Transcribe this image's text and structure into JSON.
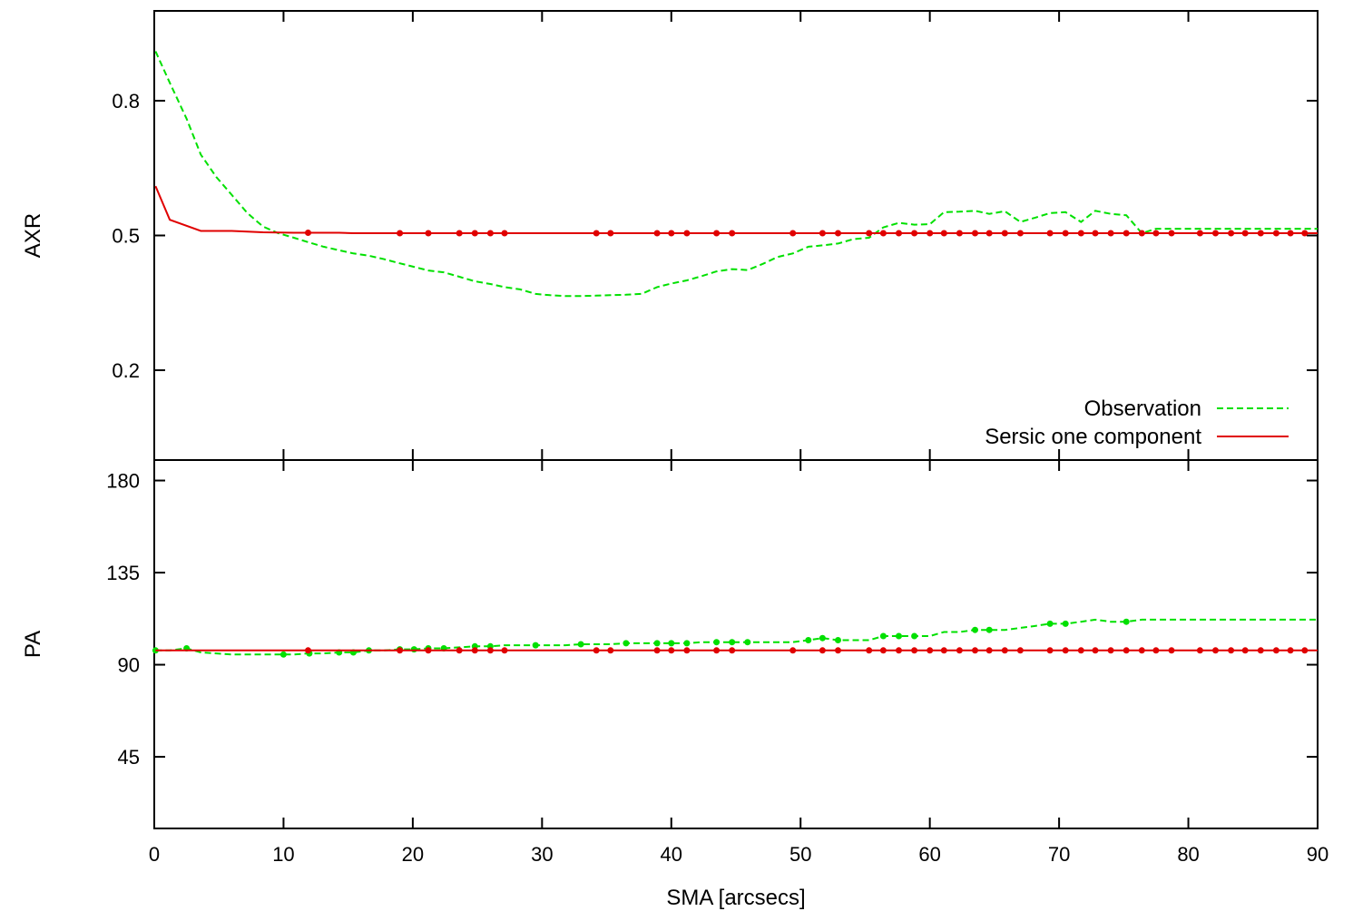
{
  "chart_data": [
    {
      "type": "line",
      "panel": "top",
      "ylabel": "AXR",
      "xlim": [
        0,
        90
      ],
      "ylim": [
        0.0,
        1.0
      ],
      "yticks": [
        0.2,
        0.5,
        0.8
      ],
      "ytick_labels": [
        "0.2",
        "0.5",
        "0.8"
      ],
      "legend_position": "bottom-right",
      "series": [
        {
          "name": "Observation",
          "color": "#00e000",
          "style": "dashed",
          "x": [
            0.1,
            1.2,
            2.5,
            3.6,
            4.8,
            6.0,
            7.2,
            8.4,
            9.6,
            10.8,
            11.9,
            13.1,
            14.3,
            15.4,
            16.6,
            17.8,
            19.0,
            20.1,
            21.2,
            22.4,
            23.6,
            24.8,
            26.0,
            27.1,
            28.3,
            29.5,
            30.6,
            31.8,
            33.0,
            34.2,
            35.3,
            36.5,
            37.7,
            38.9,
            40.0,
            41.2,
            42.4,
            43.5,
            44.7,
            45.9,
            47.1,
            48.2,
            49.4,
            50.6,
            51.7,
            52.9,
            54.1,
            55.3,
            56.4,
            57.6,
            58.8,
            60.0,
            61.1,
            62.3,
            63.5,
            64.6,
            65.8,
            67.0,
            68.2,
            69.3,
            70.5,
            71.7,
            72.8,
            74.0,
            75.2,
            76.4,
            77.5,
            80.0,
            85.0,
            90.0
          ],
          "y": [
            0.91,
            0.84,
            0.76,
            0.68,
            0.63,
            0.59,
            0.55,
            0.52,
            0.505,
            0.495,
            0.485,
            0.475,
            0.467,
            0.46,
            0.455,
            0.447,
            0.438,
            0.43,
            0.422,
            0.418,
            0.408,
            0.398,
            0.392,
            0.385,
            0.38,
            0.37,
            0.367,
            0.365,
            0.365,
            0.366,
            0.367,
            0.368,
            0.37,
            0.385,
            0.393,
            0.4,
            0.41,
            0.42,
            0.425,
            0.423,
            0.437,
            0.452,
            0.46,
            0.475,
            0.478,
            0.482,
            0.492,
            0.495,
            0.518,
            0.528,
            0.524,
            0.525,
            0.552,
            0.553,
            0.555,
            0.548,
            0.554,
            0.53,
            0.54,
            0.55,
            0.552,
            0.53,
            0.555,
            0.548,
            0.545,
            0.505,
            0.515,
            0.515,
            0.515,
            0.515
          ]
        },
        {
          "name": "Sersic one component",
          "color": "#e00000",
          "style": "solid",
          "x": [
            0.1,
            1.2,
            3.6,
            6.0,
            8.4,
            10.8,
            11.9,
            13.1,
            14.3,
            15.4,
            16.6,
            17.8,
            19.0,
            21.2,
            23.6,
            24.8,
            26.0,
            27.1,
            29.5,
            31.8,
            34.2,
            35.3,
            37.7,
            38.9,
            40.0,
            41.2,
            42.4,
            43.5,
            44.7,
            45.9,
            47.1,
            49.4,
            51.7,
            52.9,
            55.3,
            56.4,
            57.6,
            58.8,
            60.0,
            61.1,
            62.3,
            63.5,
            64.6,
            65.8,
            67.0,
            69.3,
            70.5,
            71.7,
            72.8,
            74.0,
            75.2,
            76.4,
            77.5,
            78.7,
            80.9,
            82.1,
            83.3,
            84.4,
            85.6,
            86.8,
            87.9,
            89.0,
            90.0
          ],
          "y": [
            0.61,
            0.535,
            0.51,
            0.51,
            0.507,
            0.506,
            0.506,
            0.506,
            0.506,
            0.505,
            0.505,
            0.505,
            0.505,
            0.505,
            0.505,
            0.505,
            0.505,
            0.505,
            0.505,
            0.505,
            0.505,
            0.505,
            0.505,
            0.505,
            0.505,
            0.505,
            0.505,
            0.505,
            0.505,
            0.505,
            0.505,
            0.505,
            0.505,
            0.505,
            0.505,
            0.505,
            0.505,
            0.505,
            0.505,
            0.505,
            0.505,
            0.505,
            0.505,
            0.505,
            0.505,
            0.505,
            0.505,
            0.505,
            0.505,
            0.505,
            0.505,
            0.505,
            0.505,
            0.505,
            0.505,
            0.505,
            0.505,
            0.505,
            0.505,
            0.505,
            0.505,
            0.505,
            0.505
          ],
          "marker_x": [
            11.9,
            19.0,
            21.2,
            23.6,
            24.8,
            26.0,
            27.1,
            34.2,
            35.3,
            38.9,
            40.0,
            41.2,
            43.5,
            44.7,
            49.4,
            51.7,
            52.9,
            55.3,
            56.4,
            57.6,
            58.8,
            60.0,
            61.1,
            62.3,
            63.5,
            64.6,
            65.8,
            67.0,
            69.3,
            70.5,
            71.7,
            72.8,
            74.0,
            75.2,
            76.4,
            77.5,
            78.7,
            80.9,
            82.1,
            83.3,
            84.4,
            85.6,
            86.8,
            87.9,
            89.0
          ]
        }
      ]
    },
    {
      "type": "line",
      "panel": "bottom",
      "ylabel": "PA",
      "xlabel": "SMA [arcsecs]",
      "xlim": [
        0,
        90
      ],
      "xticks": [
        0,
        10,
        20,
        30,
        40,
        50,
        60,
        70,
        80,
        90
      ],
      "xtick_labels": [
        "0",
        "10",
        "20",
        "30",
        "40",
        "50",
        "60",
        "70",
        "80",
        "90"
      ],
      "ylim": [
        10,
        190
      ],
      "yticks": [
        45,
        90,
        135,
        180
      ],
      "ytick_labels": [
        "45",
        "90",
        "135",
        "180"
      ],
      "series": [
        {
          "name": "Observation",
          "color": "#00e000",
          "style": "dashed",
          "x": [
            0.1,
            1.2,
            2.5,
            3.6,
            4.8,
            6.0,
            7.2,
            8.4,
            9.6,
            10.8,
            11.9,
            13.1,
            14.3,
            15.4,
            16.6,
            17.8,
            19.0,
            20.1,
            21.2,
            22.4,
            23.6,
            24.8,
            26.0,
            27.1,
            28.3,
            29.5,
            30.6,
            31.8,
            33.0,
            34.2,
            35.3,
            36.5,
            37.7,
            38.9,
            40.0,
            41.2,
            42.4,
            43.5,
            44.7,
            45.9,
            47.1,
            48.2,
            49.4,
            50.6,
            51.7,
            52.9,
            54.1,
            55.3,
            56.4,
            57.6,
            58.8,
            60.0,
            61.1,
            62.3,
            63.5,
            64.6,
            65.8,
            67.0,
            68.2,
            69.3,
            70.5,
            71.7,
            72.8,
            74.0,
            75.2,
            76.4,
            77.5,
            80.0,
            85.0,
            90.0
          ],
          "y": [
            97,
            97,
            98,
            96,
            95.5,
            95,
            95,
            95,
            95,
            95,
            95.5,
            95.5,
            96,
            96,
            97,
            97,
            97.5,
            97.5,
            98,
            98,
            98.5,
            99,
            99,
            99.5,
            99.5,
            99.5,
            99.5,
            99.5,
            100,
            100,
            100,
            100.5,
            100.5,
            100.5,
            100.5,
            100.5,
            101,
            101,
            101,
            101,
            101,
            101,
            101,
            102,
            103,
            102,
            102,
            102,
            104,
            104,
            104,
            104,
            106,
            106,
            107,
            107,
            107,
            108,
            109,
            110,
            110,
            111,
            112,
            111,
            111,
            112,
            112,
            112,
            112,
            112
          ],
          "marker_x": [
            0.1,
            2.5,
            10.0,
            12.0,
            14.3,
            15.4,
            16.6,
            19.0,
            20.1,
            21.2,
            22.4,
            24.8,
            26.0,
            29.5,
            33.0,
            36.5,
            38.9,
            40.0,
            41.2,
            43.5,
            44.7,
            45.9,
            50.6,
            51.7,
            52.9,
            56.4,
            57.6,
            58.8,
            63.5,
            64.6,
            69.3,
            70.5,
            75.2
          ]
        },
        {
          "name": "Sersic one component",
          "color": "#e00000",
          "style": "solid",
          "x": [
            0.1,
            3.6,
            6.0,
            8.4,
            10.8,
            11.9,
            19.0,
            21.2,
            23.6,
            24.8,
            26.0,
            27.1,
            34.2,
            35.3,
            38.9,
            40.0,
            41.2,
            43.5,
            44.7,
            49.4,
            51.7,
            52.9,
            55.3,
            56.4,
            57.6,
            58.8,
            60.0,
            61.1,
            62.3,
            63.5,
            64.6,
            65.8,
            67.0,
            69.3,
            70.5,
            71.7,
            72.8,
            74.0,
            75.2,
            76.4,
            77.5,
            78.7,
            80.9,
            82.1,
            83.3,
            84.4,
            85.6,
            86.8,
            87.9,
            89.0,
            90.0
          ],
          "y": [
            97,
            97,
            97,
            97,
            97,
            97,
            97,
            97,
            97,
            97,
            97,
            97,
            97,
            97,
            97,
            97,
            97,
            97,
            97,
            97,
            97,
            97,
            97,
            97,
            97,
            97,
            97,
            97,
            97,
            97,
            97,
            97,
            97,
            97,
            97,
            97,
            97,
            97,
            97,
            97,
            97,
            97,
            97,
            97,
            97,
            97,
            97,
            97,
            97,
            97,
            97
          ],
          "marker_x": [
            11.9,
            19.0,
            21.2,
            23.6,
            24.8,
            26.0,
            27.1,
            34.2,
            35.3,
            38.9,
            40.0,
            41.2,
            43.5,
            44.7,
            49.4,
            51.7,
            52.9,
            55.3,
            56.4,
            57.6,
            58.8,
            60.0,
            61.1,
            62.3,
            63.5,
            64.6,
            65.8,
            67.0,
            69.3,
            70.5,
            71.7,
            72.8,
            74.0,
            75.2,
            76.4,
            77.5,
            78.7,
            80.9,
            82.1,
            83.3,
            84.4,
            85.6,
            86.8,
            87.9,
            89.0
          ]
        }
      ]
    }
  ]
}
